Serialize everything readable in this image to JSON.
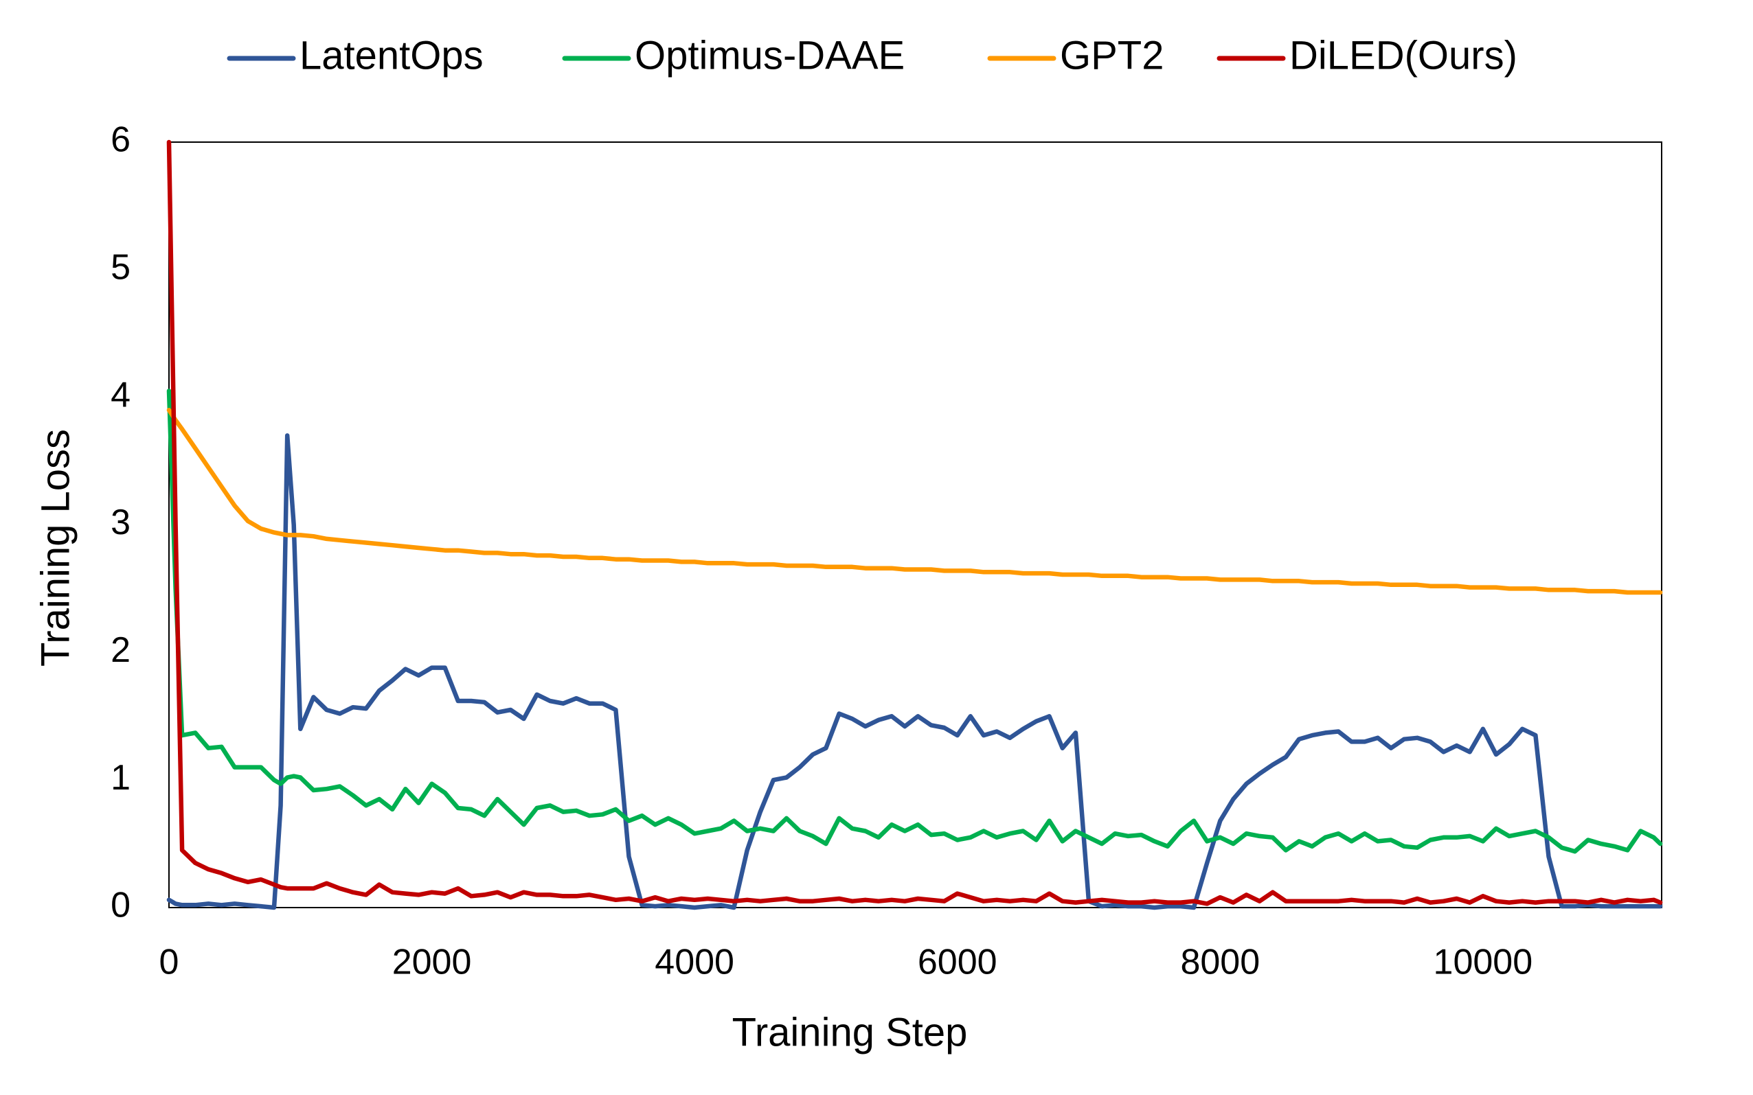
{
  "chart_data": {
    "type": "line",
    "x_label": "Training Step",
    "y_label": "Training Loss",
    "xlim": [
      0,
      11360
    ],
    "ylim": [
      0,
      6
    ],
    "xticks": [
      0,
      2000,
      4000,
      6000,
      8000,
      10000
    ],
    "yticks": [
      0,
      1,
      2,
      3,
      4,
      5,
      6
    ],
    "grid": false,
    "legend": "top",
    "x": [
      0,
      50,
      100,
      200,
      300,
      400,
      500,
      600,
      700,
      800,
      850,
      900,
      950,
      1000,
      1100,
      1200,
      1300,
      1400,
      1500,
      1600,
      1700,
      1800,
      1900,
      2000,
      2100,
      2200,
      2300,
      2400,
      2500,
      2600,
      2700,
      2800,
      2900,
      3000,
      3100,
      3200,
      3300,
      3400,
      3500,
      3600,
      3700,
      3800,
      3900,
      4000,
      4100,
      4200,
      4300,
      4400,
      4500,
      4600,
      4700,
      4800,
      4900,
      5000,
      5100,
      5200,
      5300,
      5400,
      5500,
      5600,
      5700,
      5800,
      5900,
      6000,
      6100,
      6200,
      6300,
      6400,
      6500,
      6600,
      6700,
      6800,
      6900,
      7000,
      7100,
      7200,
      7300,
      7400,
      7500,
      7600,
      7700,
      7800,
      7900,
      8000,
      8100,
      8200,
      8300,
      8400,
      8500,
      8600,
      8700,
      8800,
      8900,
      9000,
      9100,
      9200,
      9300,
      9400,
      9500,
      9600,
      9700,
      9800,
      9900,
      10000,
      10100,
      10200,
      10300,
      10400,
      10500,
      10600,
      10700,
      10800,
      10900,
      11000,
      11100,
      11200,
      11300,
      11350
    ],
    "series": [
      {
        "name": "LatentOps",
        "color": "#2f5597",
        "values": [
          0.06,
          0.03,
          0.02,
          0.02,
          0.03,
          0.02,
          0.03,
          0.02,
          0.01,
          0.0,
          0.8,
          3.7,
          3.0,
          1.4,
          1.65,
          1.55,
          1.52,
          1.57,
          1.56,
          1.7,
          1.78,
          1.87,
          1.82,
          1.88,
          1.88,
          1.62,
          1.62,
          1.61,
          1.53,
          1.55,
          1.48,
          1.67,
          1.62,
          1.6,
          1.64,
          1.6,
          1.6,
          1.55,
          0.4,
          0.02,
          0.01,
          0.02,
          0.01,
          0.0,
          0.01,
          0.02,
          0.0,
          0.45,
          0.75,
          1.0,
          1.02,
          1.1,
          1.2,
          1.25,
          1.52,
          1.48,
          1.42,
          1.47,
          1.5,
          1.42,
          1.5,
          1.43,
          1.41,
          1.35,
          1.5,
          1.35,
          1.38,
          1.33,
          1.4,
          1.46,
          1.5,
          1.25,
          1.37,
          0.05,
          0.01,
          0.02,
          0.01,
          0.01,
          0.0,
          0.01,
          0.01,
          0.0,
          0.35,
          0.68,
          0.85,
          0.97,
          1.05,
          1.12,
          1.18,
          1.32,
          1.35,
          1.37,
          1.38,
          1.3,
          1.3,
          1.33,
          1.25,
          1.32,
          1.33,
          1.3,
          1.22,
          1.27,
          1.22,
          1.4,
          1.2,
          1.28,
          1.4,
          1.35,
          0.4,
          0.01,
          0.01,
          0.02,
          0.01,
          0.01,
          0.01,
          0.01,
          0.01,
          0.01
        ]
      },
      {
        "name": "Optimus-DAAE",
        "color": "#00b050",
        "values": [
          4.05,
          2.5,
          1.35,
          1.37,
          1.25,
          1.26,
          1.1,
          1.1,
          1.1,
          1.0,
          0.97,
          1.02,
          1.03,
          1.02,
          0.92,
          0.93,
          0.95,
          0.88,
          0.8,
          0.85,
          0.77,
          0.93,
          0.82,
          0.97,
          0.9,
          0.78,
          0.77,
          0.72,
          0.85,
          0.75,
          0.65,
          0.78,
          0.8,
          0.75,
          0.76,
          0.72,
          0.73,
          0.77,
          0.68,
          0.72,
          0.65,
          0.7,
          0.65,
          0.58,
          0.6,
          0.62,
          0.68,
          0.6,
          0.62,
          0.6,
          0.7,
          0.6,
          0.56,
          0.5,
          0.7,
          0.62,
          0.6,
          0.55,
          0.65,
          0.6,
          0.65,
          0.57,
          0.58,
          0.53,
          0.55,
          0.6,
          0.55,
          0.58,
          0.6,
          0.53,
          0.68,
          0.52,
          0.6,
          0.55,
          0.5,
          0.58,
          0.56,
          0.57,
          0.52,
          0.48,
          0.6,
          0.68,
          0.52,
          0.55,
          0.5,
          0.58,
          0.56,
          0.55,
          0.45,
          0.52,
          0.48,
          0.55,
          0.58,
          0.52,
          0.58,
          0.52,
          0.53,
          0.48,
          0.47,
          0.53,
          0.55,
          0.55,
          0.56,
          0.52,
          0.62,
          0.56,
          0.58,
          0.6,
          0.55,
          0.47,
          0.44,
          0.53,
          0.5,
          0.48,
          0.45,
          0.6,
          0.55,
          0.5
        ]
      },
      {
        "name": "GPT2",
        "color": "#ff9900",
        "values": [
          3.9,
          3.82,
          3.75,
          3.6,
          3.45,
          3.3,
          3.15,
          3.03,
          2.97,
          2.94,
          2.93,
          2.92,
          2.92,
          2.92,
          2.91,
          2.89,
          2.88,
          2.87,
          2.86,
          2.85,
          2.84,
          2.83,
          2.82,
          2.81,
          2.8,
          2.8,
          2.79,
          2.78,
          2.78,
          2.77,
          2.77,
          2.76,
          2.76,
          2.75,
          2.75,
          2.74,
          2.74,
          2.73,
          2.73,
          2.72,
          2.72,
          2.72,
          2.71,
          2.71,
          2.7,
          2.7,
          2.7,
          2.69,
          2.69,
          2.69,
          2.68,
          2.68,
          2.68,
          2.67,
          2.67,
          2.67,
          2.66,
          2.66,
          2.66,
          2.65,
          2.65,
          2.65,
          2.64,
          2.64,
          2.64,
          2.63,
          2.63,
          2.63,
          2.62,
          2.62,
          2.62,
          2.61,
          2.61,
          2.61,
          2.6,
          2.6,
          2.6,
          2.59,
          2.59,
          2.59,
          2.58,
          2.58,
          2.58,
          2.57,
          2.57,
          2.57,
          2.57,
          2.56,
          2.56,
          2.56,
          2.55,
          2.55,
          2.55,
          2.54,
          2.54,
          2.54,
          2.53,
          2.53,
          2.53,
          2.52,
          2.52,
          2.52,
          2.51,
          2.51,
          2.51,
          2.5,
          2.5,
          2.5,
          2.49,
          2.49,
          2.49,
          2.48,
          2.48,
          2.48,
          2.47,
          2.47,
          2.47,
          2.47
        ]
      },
      {
        "name": "DiLED(Ours)",
        "color": "#c00000",
        "values": [
          6.0,
          3.0,
          0.45,
          0.35,
          0.3,
          0.27,
          0.23,
          0.2,
          0.22,
          0.18,
          0.16,
          0.15,
          0.15,
          0.15,
          0.15,
          0.19,
          0.15,
          0.12,
          0.1,
          0.18,
          0.12,
          0.11,
          0.1,
          0.12,
          0.11,
          0.15,
          0.09,
          0.1,
          0.12,
          0.08,
          0.12,
          0.1,
          0.1,
          0.09,
          0.09,
          0.1,
          0.08,
          0.06,
          0.07,
          0.05,
          0.08,
          0.05,
          0.07,
          0.06,
          0.07,
          0.06,
          0.05,
          0.06,
          0.05,
          0.06,
          0.07,
          0.05,
          0.05,
          0.06,
          0.07,
          0.05,
          0.06,
          0.05,
          0.06,
          0.05,
          0.07,
          0.06,
          0.05,
          0.11,
          0.08,
          0.05,
          0.06,
          0.05,
          0.06,
          0.05,
          0.11,
          0.05,
          0.04,
          0.05,
          0.06,
          0.05,
          0.04,
          0.04,
          0.05,
          0.04,
          0.04,
          0.05,
          0.03,
          0.08,
          0.04,
          0.1,
          0.05,
          0.12,
          0.05,
          0.05,
          0.05,
          0.05,
          0.05,
          0.06,
          0.05,
          0.05,
          0.05,
          0.04,
          0.07,
          0.04,
          0.05,
          0.07,
          0.04,
          0.09,
          0.05,
          0.04,
          0.05,
          0.04,
          0.05,
          0.05,
          0.05,
          0.04,
          0.06,
          0.04,
          0.06,
          0.05,
          0.06,
          0.04
        ]
      }
    ]
  }
}
